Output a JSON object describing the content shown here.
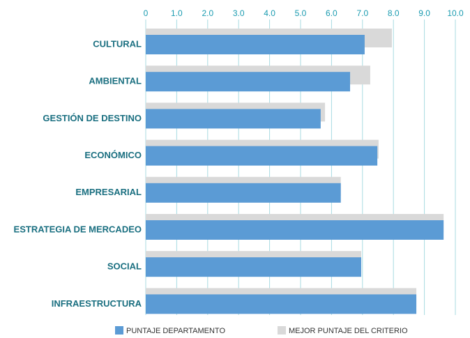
{
  "chart_data": {
    "type": "bar",
    "orientation": "horizontal",
    "categories": [
      "CULTURAL",
      "AMBIENTAL",
      "GESTIÓN DE DESTINO",
      "ECONÓMICO",
      "EMPRESARIAL",
      "ESTRATEGIA DE MERCADEO",
      "SOCIAL",
      "INFRAESTRUCTURA"
    ],
    "series": [
      {
        "name": "PUNTAJE DEPARTAMENTO",
        "color": "#5b9bd5",
        "values": [
          7.07,
          6.6,
          5.65,
          7.48,
          6.3,
          9.62,
          6.96,
          8.74
        ]
      },
      {
        "name": "MEJOR PUNTAJE DEL CRITERIO",
        "color": "#d9d9d9",
        "values": [
          7.95,
          7.25,
          5.79,
          7.52,
          6.3,
          9.62,
          6.96,
          8.74
        ]
      }
    ],
    "xlim": [
      0,
      10
    ],
    "xticks": [
      0,
      {
        "value": 1,
        "label": "1.0"
      },
      {
        "value": 2,
        "label": "2.0"
      },
      {
        "value": 3,
        "label": "3.0"
      },
      {
        "value": 4,
        "label": "4.0"
      },
      {
        "value": 5,
        "label": "5.0"
      },
      {
        "value": 6,
        "label": "6.0"
      },
      {
        "value": 7,
        "label": "7.0"
      },
      {
        "value": 8,
        "label": "8.0"
      },
      {
        "value": 9,
        "label": "9.0"
      },
      {
        "value": 10,
        "label": "10.0"
      }
    ],
    "grid": true,
    "legend": "bottom"
  }
}
